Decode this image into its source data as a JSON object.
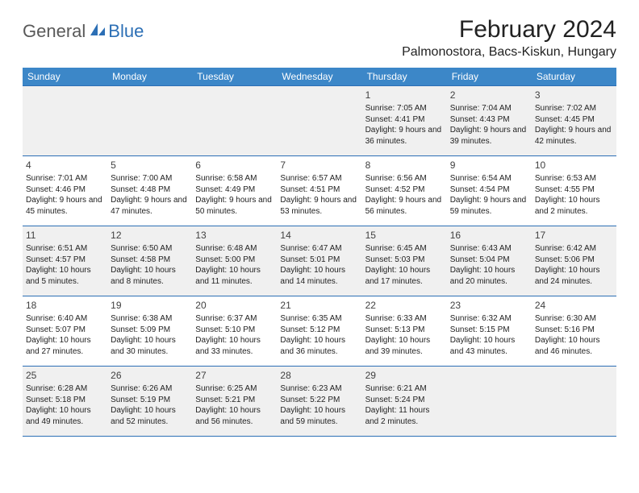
{
  "logo": {
    "text_general": "General",
    "text_blue": "Blue",
    "icon_color": "#2c6fb5"
  },
  "title": "February 2024",
  "location": "Palmonostora, Bacs-Kiskun, Hungary",
  "colors": {
    "header_bg": "#3c87c8",
    "border": "#2c6fb5",
    "shade": "#f0f0f0"
  },
  "weekdays": [
    "Sunday",
    "Monday",
    "Tuesday",
    "Wednesday",
    "Thursday",
    "Friday",
    "Saturday"
  ],
  "weeks": [
    [
      {
        "num": "",
        "sunrise": "",
        "sunset": "",
        "daylight": ""
      },
      {
        "num": "",
        "sunrise": "",
        "sunset": "",
        "daylight": ""
      },
      {
        "num": "",
        "sunrise": "",
        "sunset": "",
        "daylight": ""
      },
      {
        "num": "",
        "sunrise": "",
        "sunset": "",
        "daylight": ""
      },
      {
        "num": "1",
        "sunrise": "Sunrise: 7:05 AM",
        "sunset": "Sunset: 4:41 PM",
        "daylight": "Daylight: 9 hours and 36 minutes."
      },
      {
        "num": "2",
        "sunrise": "Sunrise: 7:04 AM",
        "sunset": "Sunset: 4:43 PM",
        "daylight": "Daylight: 9 hours and 39 minutes."
      },
      {
        "num": "3",
        "sunrise": "Sunrise: 7:02 AM",
        "sunset": "Sunset: 4:45 PM",
        "daylight": "Daylight: 9 hours and 42 minutes."
      }
    ],
    [
      {
        "num": "4",
        "sunrise": "Sunrise: 7:01 AM",
        "sunset": "Sunset: 4:46 PM",
        "daylight": "Daylight: 9 hours and 45 minutes."
      },
      {
        "num": "5",
        "sunrise": "Sunrise: 7:00 AM",
        "sunset": "Sunset: 4:48 PM",
        "daylight": "Daylight: 9 hours and 47 minutes."
      },
      {
        "num": "6",
        "sunrise": "Sunrise: 6:58 AM",
        "sunset": "Sunset: 4:49 PM",
        "daylight": "Daylight: 9 hours and 50 minutes."
      },
      {
        "num": "7",
        "sunrise": "Sunrise: 6:57 AM",
        "sunset": "Sunset: 4:51 PM",
        "daylight": "Daylight: 9 hours and 53 minutes."
      },
      {
        "num": "8",
        "sunrise": "Sunrise: 6:56 AM",
        "sunset": "Sunset: 4:52 PM",
        "daylight": "Daylight: 9 hours and 56 minutes."
      },
      {
        "num": "9",
        "sunrise": "Sunrise: 6:54 AM",
        "sunset": "Sunset: 4:54 PM",
        "daylight": "Daylight: 9 hours and 59 minutes."
      },
      {
        "num": "10",
        "sunrise": "Sunrise: 6:53 AM",
        "sunset": "Sunset: 4:55 PM",
        "daylight": "Daylight: 10 hours and 2 minutes."
      }
    ],
    [
      {
        "num": "11",
        "sunrise": "Sunrise: 6:51 AM",
        "sunset": "Sunset: 4:57 PM",
        "daylight": "Daylight: 10 hours and 5 minutes."
      },
      {
        "num": "12",
        "sunrise": "Sunrise: 6:50 AM",
        "sunset": "Sunset: 4:58 PM",
        "daylight": "Daylight: 10 hours and 8 minutes."
      },
      {
        "num": "13",
        "sunrise": "Sunrise: 6:48 AM",
        "sunset": "Sunset: 5:00 PM",
        "daylight": "Daylight: 10 hours and 11 minutes."
      },
      {
        "num": "14",
        "sunrise": "Sunrise: 6:47 AM",
        "sunset": "Sunset: 5:01 PM",
        "daylight": "Daylight: 10 hours and 14 minutes."
      },
      {
        "num": "15",
        "sunrise": "Sunrise: 6:45 AM",
        "sunset": "Sunset: 5:03 PM",
        "daylight": "Daylight: 10 hours and 17 minutes."
      },
      {
        "num": "16",
        "sunrise": "Sunrise: 6:43 AM",
        "sunset": "Sunset: 5:04 PM",
        "daylight": "Daylight: 10 hours and 20 minutes."
      },
      {
        "num": "17",
        "sunrise": "Sunrise: 6:42 AM",
        "sunset": "Sunset: 5:06 PM",
        "daylight": "Daylight: 10 hours and 24 minutes."
      }
    ],
    [
      {
        "num": "18",
        "sunrise": "Sunrise: 6:40 AM",
        "sunset": "Sunset: 5:07 PM",
        "daylight": "Daylight: 10 hours and 27 minutes."
      },
      {
        "num": "19",
        "sunrise": "Sunrise: 6:38 AM",
        "sunset": "Sunset: 5:09 PM",
        "daylight": "Daylight: 10 hours and 30 minutes."
      },
      {
        "num": "20",
        "sunrise": "Sunrise: 6:37 AM",
        "sunset": "Sunset: 5:10 PM",
        "daylight": "Daylight: 10 hours and 33 minutes."
      },
      {
        "num": "21",
        "sunrise": "Sunrise: 6:35 AM",
        "sunset": "Sunset: 5:12 PM",
        "daylight": "Daylight: 10 hours and 36 minutes."
      },
      {
        "num": "22",
        "sunrise": "Sunrise: 6:33 AM",
        "sunset": "Sunset: 5:13 PM",
        "daylight": "Daylight: 10 hours and 39 minutes."
      },
      {
        "num": "23",
        "sunrise": "Sunrise: 6:32 AM",
        "sunset": "Sunset: 5:15 PM",
        "daylight": "Daylight: 10 hours and 43 minutes."
      },
      {
        "num": "24",
        "sunrise": "Sunrise: 6:30 AM",
        "sunset": "Sunset: 5:16 PM",
        "daylight": "Daylight: 10 hours and 46 minutes."
      }
    ],
    [
      {
        "num": "25",
        "sunrise": "Sunrise: 6:28 AM",
        "sunset": "Sunset: 5:18 PM",
        "daylight": "Daylight: 10 hours and 49 minutes."
      },
      {
        "num": "26",
        "sunrise": "Sunrise: 6:26 AM",
        "sunset": "Sunset: 5:19 PM",
        "daylight": "Daylight: 10 hours and 52 minutes."
      },
      {
        "num": "27",
        "sunrise": "Sunrise: 6:25 AM",
        "sunset": "Sunset: 5:21 PM",
        "daylight": "Daylight: 10 hours and 56 minutes."
      },
      {
        "num": "28",
        "sunrise": "Sunrise: 6:23 AM",
        "sunset": "Sunset: 5:22 PM",
        "daylight": "Daylight: 10 hours and 59 minutes."
      },
      {
        "num": "29",
        "sunrise": "Sunrise: 6:21 AM",
        "sunset": "Sunset: 5:24 PM",
        "daylight": "Daylight: 11 hours and 2 minutes."
      },
      {
        "num": "",
        "sunrise": "",
        "sunset": "",
        "daylight": ""
      },
      {
        "num": "",
        "sunrise": "",
        "sunset": "",
        "daylight": ""
      }
    ]
  ]
}
